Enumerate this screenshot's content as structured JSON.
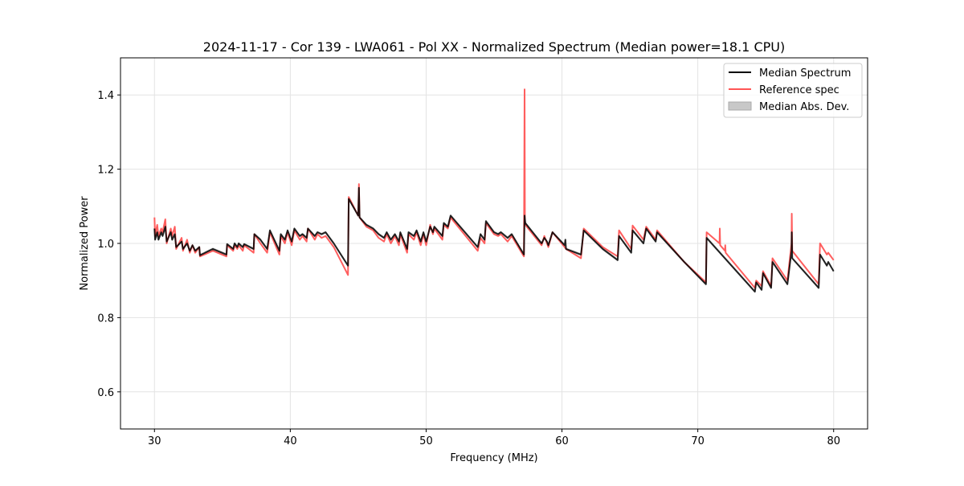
{
  "chart_data": {
    "type": "line",
    "title": "2024-11-17 - Cor 139 - LWA061 - Pol XX - Normalized Spectrum (Median power=18.1 CPU)",
    "xlabel": "Frequency (MHz)",
    "ylabel": "Normalized Power",
    "xlim": [
      27.5,
      82.5
    ],
    "ylim": [
      0.5,
      1.5
    ],
    "xticks": [
      30,
      40,
      50,
      60,
      70,
      80
    ],
    "yticks": [
      0.6,
      0.8,
      1.0,
      1.2,
      1.4
    ],
    "xtick_labels": [
      "30",
      "40",
      "50",
      "60",
      "70",
      "80"
    ],
    "ytick_labels": [
      "0.6",
      "0.8",
      "1.0",
      "1.2",
      "1.4"
    ],
    "grid": true,
    "legend_position": "top-right",
    "legend": [
      "Median Spectrum",
      "Reference spec",
      "Median Abs. Dev."
    ],
    "colors": {
      "median": "#000000",
      "reference": "#ff5555",
      "mad": "#c8c8c8"
    },
    "series": [
      {
        "name": "Median Spectrum",
        "points": [
          [
            30.0,
            1.04
          ],
          [
            30.05,
            1.01
          ],
          [
            30.2,
            1.03
          ],
          [
            30.3,
            1.01
          ],
          [
            30.5,
            1.03
          ],
          [
            30.6,
            1.02
          ],
          [
            30.8,
            1.045
          ],
          [
            30.9,
            1.005
          ],
          [
            31.2,
            1.03
          ],
          [
            31.3,
            1.01
          ],
          [
            31.5,
            1.025
          ],
          [
            31.6,
            0.99
          ],
          [
            32.0,
            1.005
          ],
          [
            32.1,
            0.985
          ],
          [
            32.4,
            1.0
          ],
          [
            32.6,
            0.98
          ],
          [
            32.8,
            0.995
          ],
          [
            33.0,
            0.98
          ],
          [
            33.3,
            0.99
          ],
          [
            33.35,
            0.968
          ],
          [
            34.3,
            0.985
          ],
          [
            35.3,
            0.97
          ],
          [
            35.35,
            0.998
          ],
          [
            35.8,
            0.985
          ],
          [
            35.9,
            1.0
          ],
          [
            36.1,
            0.99
          ],
          [
            36.2,
            1.0
          ],
          [
            36.5,
            0.99
          ],
          [
            36.6,
            0.998
          ],
          [
            37.3,
            0.985
          ],
          [
            37.35,
            1.025
          ],
          [
            37.8,
            1.01
          ],
          [
            38.0,
            1.0
          ],
          [
            38.3,
            0.985
          ],
          [
            38.5,
            1.035
          ],
          [
            39.2,
            0.98
          ],
          [
            39.3,
            1.025
          ],
          [
            39.6,
            1.01
          ],
          [
            39.8,
            1.035
          ],
          [
            40.1,
            1.005
          ],
          [
            40.3,
            1.04
          ],
          [
            40.7,
            1.02
          ],
          [
            40.9,
            1.025
          ],
          [
            41.2,
            1.015
          ],
          [
            41.3,
            1.04
          ],
          [
            41.8,
            1.02
          ],
          [
            42.0,
            1.03
          ],
          [
            42.3,
            1.025
          ],
          [
            42.6,
            1.03
          ],
          [
            43.2,
            1.0
          ],
          [
            44.25,
            0.94
          ],
          [
            44.3,
            1.12
          ],
          [
            45.0,
            1.075
          ],
          [
            45.05,
            1.15
          ],
          [
            45.1,
            1.07
          ],
          [
            45.6,
            1.05
          ],
          [
            46.1,
            1.04
          ],
          [
            46.5,
            1.025
          ],
          [
            46.9,
            1.015
          ],
          [
            47.1,
            1.03
          ],
          [
            47.4,
            1.01
          ],
          [
            47.7,
            1.025
          ],
          [
            48.0,
            1.005
          ],
          [
            48.1,
            1.03
          ],
          [
            48.6,
            0.985
          ],
          [
            48.7,
            1.03
          ],
          [
            49.1,
            1.02
          ],
          [
            49.3,
            1.035
          ],
          [
            49.6,
            1.005
          ],
          [
            49.8,
            1.03
          ],
          [
            50.0,
            1.005
          ],
          [
            50.3,
            1.045
          ],
          [
            50.5,
            1.03
          ],
          [
            50.6,
            1.045
          ],
          [
            51.2,
            1.02
          ],
          [
            51.3,
            1.055
          ],
          [
            51.6,
            1.045
          ],
          [
            51.8,
            1.075
          ],
          [
            53.8,
            0.99
          ],
          [
            54.0,
            1.025
          ],
          [
            54.3,
            1.01
          ],
          [
            54.4,
            1.06
          ],
          [
            55.0,
            1.03
          ],
          [
            55.3,
            1.025
          ],
          [
            55.5,
            1.03
          ],
          [
            56.0,
            1.015
          ],
          [
            56.3,
            1.025
          ],
          [
            57.2,
            0.97
          ],
          [
            57.25,
            1.075
          ],
          [
            57.3,
            1.055
          ],
          [
            58.5,
            1.0
          ],
          [
            58.7,
            1.015
          ],
          [
            58.9,
            1.005
          ],
          [
            59.0,
            0.995
          ],
          [
            59.3,
            1.03
          ],
          [
            60.2,
            0.995
          ],
          [
            60.25,
            1.01
          ],
          [
            60.3,
            0.985
          ],
          [
            61.4,
            0.97
          ],
          [
            61.6,
            1.035
          ],
          [
            63.0,
            0.985
          ],
          [
            64.1,
            0.955
          ],
          [
            64.2,
            1.02
          ],
          [
            65.1,
            0.975
          ],
          [
            65.2,
            1.035
          ],
          [
            66.0,
            1.0
          ],
          [
            66.2,
            1.04
          ],
          [
            66.9,
            1.005
          ],
          [
            67.0,
            1.03
          ],
          [
            69.0,
            0.95
          ],
          [
            70.6,
            0.89
          ],
          [
            70.65,
            1.015
          ],
          [
            74.2,
            0.87
          ],
          [
            74.3,
            0.895
          ],
          [
            74.7,
            0.875
          ],
          [
            74.8,
            0.92
          ],
          [
            75.4,
            0.88
          ],
          [
            75.5,
            0.95
          ],
          [
            76.6,
            0.89
          ],
          [
            76.9,
            0.98
          ],
          [
            76.92,
            1.03
          ],
          [
            76.95,
            0.96
          ],
          [
            78.9,
            0.88
          ],
          [
            79.0,
            0.97
          ],
          [
            79.5,
            0.94
          ],
          [
            79.6,
            0.95
          ],
          [
            80.0,
            0.925
          ]
        ]
      },
      {
        "name": "Reference spec",
        "points": [
          [
            30.0,
            1.07
          ],
          [
            30.05,
            1.02
          ],
          [
            30.2,
            1.05
          ],
          [
            30.3,
            1.02
          ],
          [
            30.5,
            1.04
          ],
          [
            30.6,
            1.03
          ],
          [
            30.8,
            1.065
          ],
          [
            30.9,
            1.0
          ],
          [
            31.2,
            1.04
          ],
          [
            31.3,
            1.02
          ],
          [
            31.5,
            1.045
          ],
          [
            31.6,
            0.985
          ],
          [
            32.0,
            1.015
          ],
          [
            32.1,
            0.98
          ],
          [
            32.4,
            1.01
          ],
          [
            32.6,
            0.975
          ],
          [
            32.8,
            0.995
          ],
          [
            33.0,
            0.975
          ],
          [
            33.3,
            0.99
          ],
          [
            33.35,
            0.965
          ],
          [
            34.3,
            0.98
          ],
          [
            35.3,
            0.965
          ],
          [
            35.35,
            0.995
          ],
          [
            35.8,
            0.98
          ],
          [
            35.9,
            0.995
          ],
          [
            36.1,
            0.985
          ],
          [
            36.2,
            0.995
          ],
          [
            36.5,
            0.98
          ],
          [
            36.6,
            0.995
          ],
          [
            37.3,
            0.975
          ],
          [
            37.35,
            1.025
          ],
          [
            37.8,
            1.0
          ],
          [
            38.0,
            0.99
          ],
          [
            38.3,
            0.975
          ],
          [
            38.5,
            1.03
          ],
          [
            39.2,
            0.97
          ],
          [
            39.3,
            1.02
          ],
          [
            39.6,
            1.0
          ],
          [
            39.8,
            1.03
          ],
          [
            40.1,
            0.995
          ],
          [
            40.3,
            1.035
          ],
          [
            40.7,
            1.01
          ],
          [
            40.9,
            1.02
          ],
          [
            41.2,
            1.005
          ],
          [
            41.3,
            1.04
          ],
          [
            41.8,
            1.01
          ],
          [
            42.0,
            1.025
          ],
          [
            42.3,
            1.015
          ],
          [
            42.6,
            1.02
          ],
          [
            43.2,
            0.99
          ],
          [
            44.25,
            0.915
          ],
          [
            44.3,
            1.125
          ],
          [
            45.0,
            1.075
          ],
          [
            45.05,
            1.16
          ],
          [
            45.1,
            1.07
          ],
          [
            45.6,
            1.045
          ],
          [
            46.1,
            1.035
          ],
          [
            46.5,
            1.015
          ],
          [
            46.9,
            1.005
          ],
          [
            47.1,
            1.025
          ],
          [
            47.4,
            1.0
          ],
          [
            47.7,
            1.02
          ],
          [
            48.0,
            0.995
          ],
          [
            48.1,
            1.025
          ],
          [
            48.6,
            0.975
          ],
          [
            48.7,
            1.025
          ],
          [
            49.1,
            1.01
          ],
          [
            49.3,
            1.03
          ],
          [
            49.6,
            0.995
          ],
          [
            49.8,
            1.025
          ],
          [
            50.0,
            0.995
          ],
          [
            50.3,
            1.05
          ],
          [
            50.5,
            1.025
          ],
          [
            50.6,
            1.04
          ],
          [
            51.2,
            1.01
          ],
          [
            51.3,
            1.05
          ],
          [
            51.6,
            1.04
          ],
          [
            51.8,
            1.07
          ],
          [
            53.8,
            0.98
          ],
          [
            54.0,
            1.015
          ],
          [
            54.3,
            1.0
          ],
          [
            54.4,
            1.055
          ],
          [
            55.0,
            1.025
          ],
          [
            55.3,
            1.02
          ],
          [
            55.5,
            1.025
          ],
          [
            56.0,
            1.005
          ],
          [
            56.3,
            1.02
          ],
          [
            57.2,
            0.965
          ],
          [
            57.25,
            1.415
          ],
          [
            57.27,
            1.06
          ],
          [
            57.3,
            1.05
          ],
          [
            58.5,
            0.995
          ],
          [
            58.7,
            1.02
          ],
          [
            58.9,
            1.0
          ],
          [
            59.0,
            0.99
          ],
          [
            59.3,
            1.03
          ],
          [
            60.2,
            0.99
          ],
          [
            60.3,
            0.985
          ],
          [
            61.4,
            0.96
          ],
          [
            61.6,
            1.04
          ],
          [
            63.0,
            0.99
          ],
          [
            64.1,
            0.965
          ],
          [
            64.2,
            1.035
          ],
          [
            65.1,
            0.985
          ],
          [
            65.2,
            1.048
          ],
          [
            66.0,
            1.01
          ],
          [
            66.2,
            1.045
          ],
          [
            66.9,
            1.01
          ],
          [
            67.0,
            1.035
          ],
          [
            69.0,
            0.95
          ],
          [
            70.6,
            0.895
          ],
          [
            70.65,
            1.03
          ],
          [
            71.6,
            1.0
          ],
          [
            71.62,
            1.04
          ],
          [
            71.65,
            0.995
          ],
          [
            72.0,
            0.98
          ],
          [
            72.02,
            0.995
          ],
          [
            72.05,
            0.975
          ],
          [
            74.2,
            0.88
          ],
          [
            74.3,
            0.9
          ],
          [
            74.7,
            0.885
          ],
          [
            74.8,
            0.925
          ],
          [
            75.4,
            0.885
          ],
          [
            75.5,
            0.96
          ],
          [
            76.6,
            0.9
          ],
          [
            76.9,
            1.0
          ],
          [
            76.92,
            1.08
          ],
          [
            76.95,
            0.98
          ],
          [
            78.9,
            0.89
          ],
          [
            79.0,
            1.0
          ],
          [
            79.5,
            0.97
          ],
          [
            79.6,
            0.975
          ],
          [
            80.0,
            0.955
          ]
        ]
      }
    ]
  }
}
